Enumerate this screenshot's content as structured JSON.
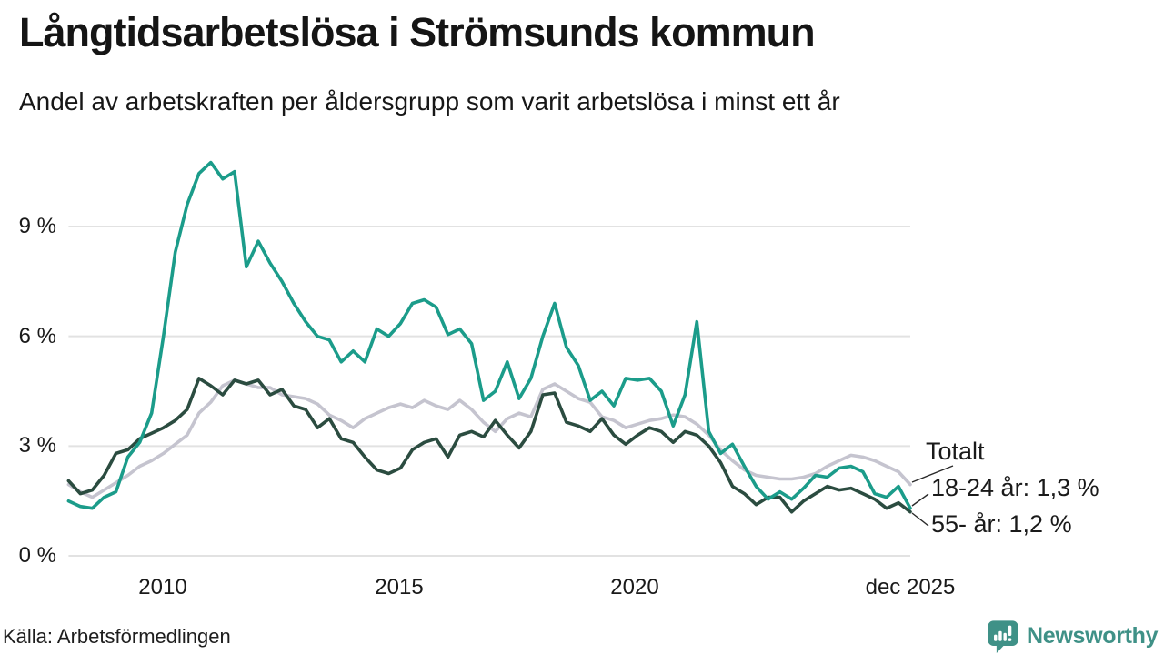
{
  "header": {
    "title": "Långtidsarbetslösa i Strömsunds kommun",
    "subtitle": "Andel av arbetskraften per åldersgrupp som varit arbetslösa i minst ett år"
  },
  "chart_data": {
    "type": "line",
    "title": "Långtidsarbetslösa i Strömsunds kommun",
    "subtitle": "Andel av arbetskraften per åldersgrupp som varit arbetslösa i minst ett år",
    "unit": "% av arbetskraften",
    "x_range": [
      2008.0,
      2025.92
    ],
    "x_resolution": "quarterly",
    "ylim": [
      0,
      11
    ],
    "yticks": [
      0,
      3,
      6,
      9
    ],
    "ytick_labels": [
      "0 %",
      "3 %",
      "6 %",
      "9 %"
    ],
    "xtick_labels": [
      "2010",
      "2015",
      "2020",
      "dec 2025"
    ],
    "grid": "horizontal",
    "legend_position": "right-annotations",
    "series": [
      {
        "name": "Totalt",
        "color": "#c5c4cf",
        "values": [
          1.95,
          1.75,
          1.6,
          1.8,
          2.0,
          2.2,
          2.45,
          2.6,
          2.8,
          3.05,
          3.3,
          3.9,
          4.2,
          4.65,
          4.8,
          4.7,
          4.6,
          4.6,
          4.4,
          4.35,
          4.3,
          4.15,
          3.85,
          3.7,
          3.5,
          3.75,
          3.9,
          4.05,
          4.15,
          4.05,
          4.25,
          4.1,
          4.0,
          4.25,
          4.0,
          3.65,
          3.4,
          3.75,
          3.9,
          3.8,
          4.55,
          4.7,
          4.5,
          4.3,
          4.2,
          3.8,
          3.7,
          3.5,
          3.6,
          3.7,
          3.75,
          3.85,
          3.8,
          3.6,
          3.3,
          2.9,
          2.6,
          2.35,
          2.2,
          2.15,
          2.1,
          2.1,
          2.15,
          2.25,
          2.45,
          2.6,
          2.75,
          2.7,
          2.6,
          2.45,
          2.3,
          1.95
        ]
      },
      {
        "name": "55- år",
        "color": "#2b4c40",
        "values": [
          2.05,
          1.7,
          1.8,
          2.2,
          2.8,
          2.9,
          3.2,
          3.35,
          3.5,
          3.7,
          4.0,
          4.85,
          4.65,
          4.4,
          4.8,
          4.7,
          4.8,
          4.4,
          4.55,
          4.1,
          4.0,
          3.5,
          3.75,
          3.2,
          3.1,
          2.7,
          2.35,
          2.25,
          2.4,
          2.9,
          3.1,
          3.2,
          2.7,
          3.3,
          3.4,
          3.25,
          3.7,
          3.3,
          2.95,
          3.4,
          4.4,
          4.45,
          3.65,
          3.55,
          3.4,
          3.75,
          3.3,
          3.05,
          3.3,
          3.5,
          3.4,
          3.1,
          3.4,
          3.3,
          3.0,
          2.55,
          1.9,
          1.7,
          1.4,
          1.6,
          1.6,
          1.2,
          1.5,
          1.7,
          1.9,
          1.8,
          1.85,
          1.7,
          1.55,
          1.3,
          1.45,
          1.2
        ]
      },
      {
        "name": "18-24 år",
        "color": "#1b9c8a",
        "values": [
          1.5,
          1.35,
          1.3,
          1.6,
          1.75,
          2.7,
          3.1,
          3.9,
          6.0,
          8.3,
          9.6,
          10.45,
          10.75,
          10.3,
          10.5,
          7.9,
          8.6,
          8.0,
          7.5,
          6.9,
          6.4,
          6.0,
          5.9,
          5.3,
          5.6,
          5.3,
          6.2,
          6.0,
          6.35,
          6.9,
          7.0,
          6.8,
          6.05,
          6.2,
          5.8,
          4.25,
          4.5,
          5.3,
          4.3,
          4.85,
          6.0,
          6.9,
          5.7,
          5.2,
          4.25,
          4.5,
          4.1,
          4.85,
          4.8,
          4.85,
          4.5,
          3.55,
          4.4,
          6.4,
          3.4,
          2.8,
          3.05,
          2.45,
          1.9,
          1.55,
          1.75,
          1.55,
          1.85,
          2.2,
          2.15,
          2.4,
          2.45,
          2.3,
          1.7,
          1.6,
          1.9,
          1.3
        ]
      }
    ],
    "annotations": [
      {
        "label": "Totalt"
      },
      {
        "label": "18-24 år: 1,3 %"
      },
      {
        "label": "55- år: 1,2 %"
      }
    ],
    "end_values": {
      "totalt": 1.95,
      "18_24": 1.3,
      "55_plus": 1.2
    }
  },
  "footer": {
    "source": "Källa: Arbetsförmedlingen",
    "brand": "Newsworthy"
  }
}
